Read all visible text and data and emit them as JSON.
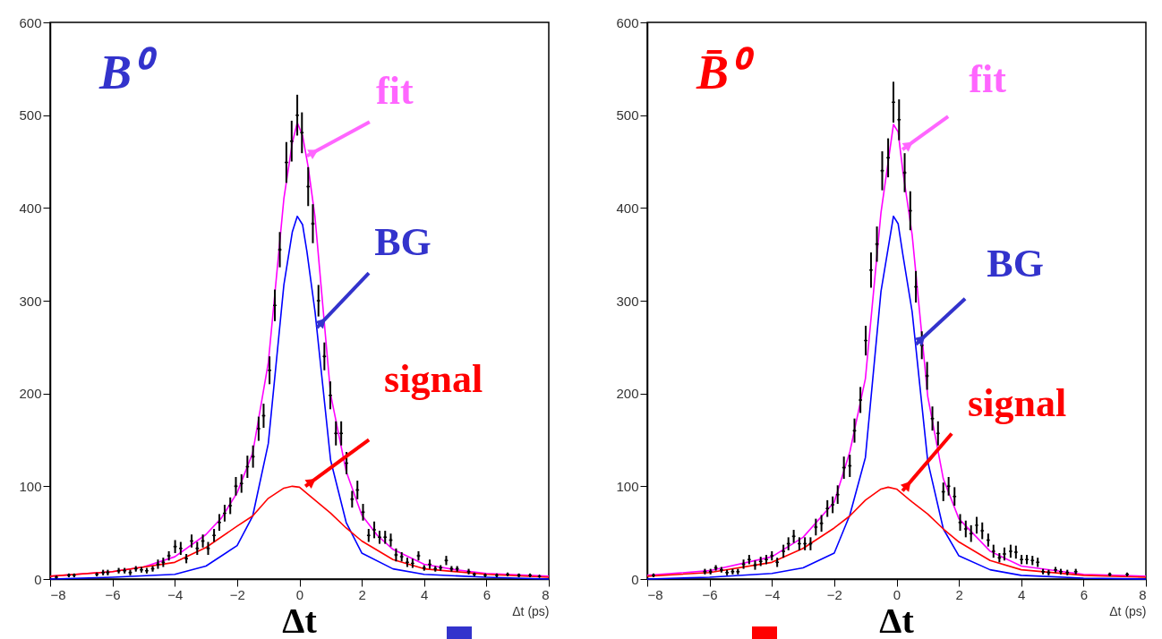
{
  "chart_data": [
    {
      "type": "scatter",
      "title": "B⁰",
      "xlabel": "Δt (ps)",
      "xlim": [
        -8,
        8
      ],
      "xticks": [
        -8,
        -6,
        -4,
        -2,
        0,
        2,
        4,
        6,
        8
      ],
      "ylim": [
        0,
        600
      ],
      "yticks": [
        0,
        100,
        200,
        300,
        400,
        500,
        600
      ],
      "grid": false,
      "annotations": [
        "Δt",
        {
          "text": "fit",
          "x": 0.24,
          "y": 456
        },
        {
          "text": "BG",
          "x": 0.56,
          "y": 271
        },
        {
          "text": "signal",
          "x": 0.19,
          "y": 100
        }
      ],
      "series": [
        {
          "marker": "cross",
          "color": "#000000",
          "x": [
            -7.8,
            -7.4,
            -7.23,
            -6.5,
            -6.3,
            -6.15,
            -5.8,
            -5.61,
            -5.43,
            -5.25,
            -5.07,
            -4.9,
            -4.71,
            -4.54,
            -4.37,
            -4.19,
            -3.99,
            -3.81,
            -3.63,
            -3.46,
            -3.28,
            -3.1,
            -2.93,
            -2.74,
            -2.57,
            -2.4,
            -2.22,
            -2.04,
            -1.86,
            -1.67,
            -1.49,
            -1.31,
            -1.15,
            -0.96,
            -0.79,
            -0.63,
            -0.42,
            -0.25,
            -0.07,
            0.08,
            0.28,
            0.43,
            0.61,
            0.8,
            0.99,
            1.17,
            1.34,
            1.51,
            1.69,
            1.86,
            2.04,
            2.22,
            2.4,
            2.57,
            2.75,
            2.93,
            3.1,
            3.28,
            3.46,
            3.63,
            3.82,
            4.0,
            4.18,
            4.36,
            4.53,
            4.71,
            4.88,
            5.06,
            5.43,
            5.61,
            5.96,
            6.33,
            6.68,
            7.04,
            7.4,
            7.7
          ],
          "values": [
            2,
            4,
            4,
            5,
            7,
            7,
            9,
            9,
            7,
            11,
            10,
            9,
            11,
            16,
            18,
            25,
            35,
            33,
            22,
            41,
            33,
            41,
            33,
            47,
            61,
            71,
            79,
            100,
            103,
            121,
            132,
            162,
            176,
            225,
            295,
            355,
            449,
            472,
            500,
            481,
            423,
            383,
            300,
            240,
            198,
            157,
            157,
            125,
            86,
            96,
            72,
            47,
            53,
            45,
            45,
            42,
            26,
            24,
            18,
            17,
            25,
            12,
            16,
            11,
            12,
            20,
            11,
            11,
            8,
            5,
            4,
            4,
            5,
            4,
            4,
            3
          ],
          "errors": [
            null,
            2,
            2,
            2,
            3,
            3,
            3,
            3,
            3,
            3,
            3,
            3,
            3,
            5,
            5,
            5,
            7,
            7,
            5,
            7,
            7,
            7,
            7,
            7,
            9,
            9,
            9,
            10,
            10,
            12,
            12,
            13,
            13,
            15,
            17,
            19,
            22,
            22,
            22,
            22,
            21,
            21,
            17,
            15,
            15,
            13,
            13,
            12,
            9,
            10,
            9,
            7,
            9,
            7,
            7,
            7,
            7,
            5,
            5,
            5,
            5,
            3,
            5,
            3,
            3,
            5,
            3,
            3,
            3,
            2,
            2,
            2,
            2,
            2,
            2,
            null
          ]
        },
        {
          "type": "line",
          "color": "#ff00ff",
          "x": [
            -8,
            -6,
            -5,
            -4,
            -3,
            -2.5,
            -2,
            -1.5,
            -1,
            -0.5,
            -0.23,
            -0.07,
            0.1,
            0.28,
            0.5,
            1,
            1.5,
            2,
            2.5,
            3,
            4,
            5,
            6,
            8
          ],
          "values": [
            3,
            8,
            13,
            24,
            48,
            66,
            93,
            136,
            233,
            410,
            470,
            492,
            478,
            444,
            390,
            199,
            116,
            69,
            47,
            32,
            16,
            10,
            6,
            3
          ]
        },
        {
          "type": "line",
          "color": "#0000ff",
          "x": [
            -8,
            -6,
            -4,
            -3,
            -2,
            -1.5,
            -1,
            -0.5,
            -0.23,
            -0.07,
            0.1,
            0.24,
            0.5,
            1,
            1.5,
            2,
            3,
            4,
            6,
            8
          ],
          "values": [
            0,
            2,
            5,
            14,
            36,
            68,
            146,
            317,
            374,
            391,
            382,
            353,
            288,
            128,
            61,
            28,
            11,
            5,
            2,
            0
          ]
        },
        {
          "type": "line",
          "color": "#ff0000",
          "x": [
            -8,
            -6,
            -4,
            -3,
            -2,
            -1.5,
            -1,
            -0.5,
            -0.23,
            0,
            0.5,
            1,
            1.5,
            2,
            3,
            4,
            6,
            8
          ],
          "values": [
            3,
            8,
            18,
            34,
            57,
            68,
            87,
            98,
            100,
            99,
            85,
            71,
            55,
            41,
            21,
            11,
            5,
            2
          ]
        }
      ]
    },
    {
      "type": "scatter",
      "title": "B̄⁰",
      "xlabel": "Δt (ps)",
      "xlim": [
        -8,
        8
      ],
      "xticks": [
        -8,
        -6,
        -4,
        -2,
        0,
        2,
        4,
        6,
        8
      ],
      "ylim": [
        0,
        600
      ],
      "yticks": [
        0,
        100,
        200,
        300,
        400,
        500,
        600
      ],
      "grid": false,
      "annotations": [
        "Δt",
        {
          "text": "fit",
          "x": 0.19,
          "y": 463
        },
        {
          "text": "BG",
          "x": 0.62,
          "y": 253
        },
        {
          "text": "signal",
          "x": 0.19,
          "y": 95
        }
      ],
      "series": [
        {
          "marker": "cross",
          "color": "#000000",
          "x": [
            -7.8,
            -6.15,
            -5.97,
            -5.8,
            -5.62,
            -5.44,
            -5.26,
            -5.09,
            -4.91,
            -4.73,
            -4.54,
            -4.36,
            -4.18,
            -4.0,
            -3.83,
            -3.63,
            -3.47,
            -3.3,
            -3.12,
            -2.94,
            -2.76,
            -2.59,
            -2.41,
            -2.22,
            -2.05,
            -1.89,
            -1.69,
            -1.5,
            -1.35,
            -1.16,
            -0.99,
            -0.82,
            -0.63,
            -0.46,
            -0.27,
            -0.1,
            0.08,
            0.26,
            0.44,
            0.62,
            0.81,
            0.98,
            1.15,
            1.33,
            1.5,
            1.67,
            1.86,
            2.04,
            2.22,
            2.39,
            2.57,
            2.75,
            2.94,
            3.11,
            3.3,
            3.46,
            3.66,
            3.83,
            4.01,
            4.18,
            4.36,
            4.53,
            4.7,
            4.88,
            5.1,
            5.27,
            5.48,
            5.75,
            6.84,
            7.4
          ],
          "values": [
            4,
            8,
            8,
            12,
            10,
            7,
            8,
            8,
            16,
            21,
            15,
            19,
            21,
            25,
            18,
            30,
            38,
            46,
            38,
            38,
            38,
            56,
            60,
            76,
            80,
            91,
            120,
            122,
            160,
            193,
            257,
            333,
            361,
            440,
            454,
            514,
            495,
            438,
            397,
            315,
            252,
            219,
            173,
            157,
            94,
            100,
            89,
            61,
            54,
            49,
            58,
            52,
            42,
            30,
            23,
            27,
            30,
            29,
            21,
            21,
            20,
            18,
            8,
            7,
            10,
            8,
            7,
            8,
            5,
            5
          ],
          "errors": [
            2,
            3,
            3,
            3,
            3,
            3,
            3,
            3,
            5,
            5,
            5,
            5,
            5,
            5,
            5,
            7,
            7,
            7,
            7,
            7,
            7,
            9,
            9,
            9,
            9,
            10,
            12,
            12,
            13,
            14,
            16,
            19,
            19,
            21,
            21,
            22,
            22,
            21,
            21,
            17,
            15,
            15,
            13,
            13,
            10,
            10,
            10,
            9,
            9,
            9,
            9,
            9,
            7,
            7,
            5,
            7,
            7,
            7,
            5,
            5,
            5,
            5,
            3,
            3,
            3,
            3,
            3,
            3,
            2,
            2
          ]
        },
        {
          "type": "line",
          "color": "#ff00ff",
          "x": [
            -8,
            -6,
            -4,
            -3,
            -2,
            -1.5,
            -1,
            -0.5,
            -0.1,
            0.05,
            0.2,
            0.5,
            1,
            1.5,
            2,
            3,
            4,
            6,
            8
          ],
          "values": [
            4,
            9,
            24,
            45,
            83,
            137,
            216,
            395,
            490,
            482,
            440,
            371,
            197,
            108,
            65,
            30,
            14,
            5,
            3
          ]
        },
        {
          "type": "line",
          "color": "#0000ff",
          "x": [
            -8,
            -6,
            -4,
            -3,
            -2,
            -1.5,
            -1,
            -0.5,
            -0.1,
            0.05,
            0.2,
            0.5,
            1,
            1.5,
            2,
            3,
            4,
            6,
            8
          ],
          "values": [
            0,
            2,
            6,
            12,
            28,
            69,
            131,
            310,
            391,
            383,
            350,
            288,
            127,
            54,
            25,
            10,
            4,
            1,
            0
          ]
        },
        {
          "type": "line",
          "color": "#ff0000",
          "x": [
            -8,
            -6,
            -4,
            -3,
            -2,
            -1.5,
            -1,
            -0.5,
            -0.27,
            0,
            0.5,
            1,
            1.5,
            2,
            3,
            4,
            6,
            8
          ],
          "values": [
            3,
            7,
            18,
            33,
            55,
            68,
            85,
            97,
            99,
            97,
            83,
            70,
            54,
            40,
            20,
            10,
            4,
            2
          ]
        }
      ]
    }
  ]
}
